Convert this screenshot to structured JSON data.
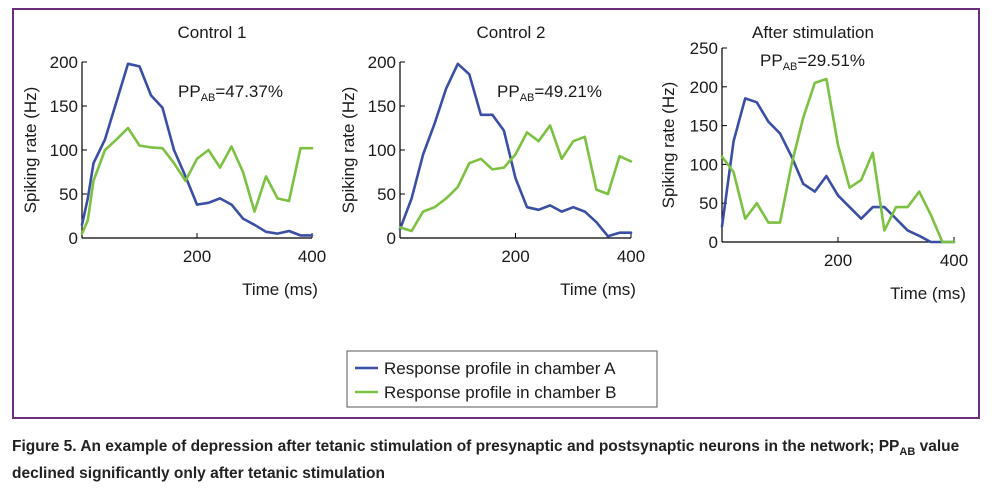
{
  "colors": {
    "series_a": "#3a4fa3",
    "series_b": "#7cc142",
    "frame": "#6b2f7e"
  },
  "chart_data": [
    {
      "type": "line",
      "title": "Control 1",
      "annotation": {
        "prefix": "PP",
        "sub": "AB",
        "suffix": "=47.37%"
      },
      "xlabel": "Time (ms)",
      "ylabel": "Spiking rate (Hz)",
      "xlim": [
        0,
        400
      ],
      "ylim": [
        0,
        200
      ],
      "xticks": [
        200,
        400
      ],
      "yticks": [
        0,
        50,
        100,
        150,
        200
      ],
      "series": [
        {
          "name": "Response profile in chamber A",
          "x": [
            0,
            10,
            20,
            40,
            60,
            80,
            100,
            120,
            140,
            160,
            180,
            200,
            220,
            240,
            260,
            280,
            300,
            320,
            340,
            360,
            380,
            400
          ],
          "y": [
            15,
            45,
            85,
            112,
            155,
            198,
            195,
            162,
            148,
            100,
            70,
            38,
            40,
            45,
            38,
            22,
            15,
            7,
            5,
            8,
            3,
            3
          ]
        },
        {
          "name": "Response profile in chamber B",
          "x": [
            0,
            10,
            20,
            40,
            60,
            80,
            100,
            120,
            140,
            160,
            180,
            200,
            220,
            240,
            260,
            280,
            300,
            320,
            340,
            360,
            380,
            400
          ],
          "y": [
            5,
            20,
            65,
            100,
            112,
            125,
            105,
            103,
            102,
            85,
            65,
            90,
            100,
            80,
            104,
            75,
            30,
            70,
            45,
            42,
            102,
            102
          ]
        }
      ]
    },
    {
      "type": "line",
      "title": "Control 2",
      "annotation": {
        "prefix": "PP",
        "sub": "AB",
        "suffix": "=49.21%"
      },
      "xlabel": "Time (ms)",
      "ylabel": "Spiking rate (Hz)",
      "xlim": [
        0,
        400
      ],
      "ylim": [
        0,
        200
      ],
      "xticks": [
        200,
        400
      ],
      "yticks": [
        0,
        50,
        100,
        150,
        200
      ],
      "series": [
        {
          "name": "Response profile in chamber A",
          "x": [
            0,
            20,
            40,
            60,
            80,
            100,
            120,
            140,
            160,
            180,
            200,
            220,
            240,
            260,
            280,
            300,
            320,
            340,
            360,
            380,
            400
          ],
          "y": [
            10,
            45,
            95,
            130,
            170,
            198,
            186,
            140,
            140,
            122,
            68,
            35,
            32,
            37,
            30,
            35,
            30,
            18,
            2,
            6,
            6
          ]
        },
        {
          "name": "Response profile in chamber B",
          "x": [
            0,
            20,
            40,
            60,
            80,
            100,
            120,
            140,
            160,
            180,
            200,
            220,
            240,
            260,
            280,
            300,
            320,
            340,
            360,
            380,
            400
          ],
          "y": [
            12,
            8,
            30,
            35,
            45,
            58,
            85,
            90,
            78,
            80,
            95,
            120,
            110,
            128,
            90,
            110,
            115,
            55,
            50,
            93,
            87
          ]
        }
      ]
    },
    {
      "type": "line",
      "title": "After stimulation",
      "annotation": {
        "prefix": "PP",
        "sub": "AB",
        "suffix": "=29.51%"
      },
      "xlabel": "Time (ms)",
      "ylabel": "Spiking rate (Hz)",
      "xlim": [
        0,
        400
      ],
      "ylim": [
        0,
        250
      ],
      "xticks": [
        200,
        400
      ],
      "yticks": [
        0,
        50,
        100,
        150,
        200,
        250
      ],
      "series": [
        {
          "name": "Response profile in chamber A",
          "x": [
            0,
            20,
            40,
            60,
            80,
            100,
            120,
            140,
            160,
            180,
            200,
            220,
            240,
            260,
            280,
            300,
            320,
            340,
            360,
            380,
            400
          ],
          "y": [
            20,
            130,
            185,
            180,
            155,
            140,
            110,
            75,
            65,
            85,
            60,
            45,
            30,
            45,
            45,
            30,
            15,
            8,
            0,
            0,
            0
          ]
        },
        {
          "name": "Response profile in chamber B",
          "x": [
            0,
            20,
            40,
            60,
            80,
            100,
            120,
            140,
            160,
            180,
            200,
            220,
            240,
            260,
            280,
            300,
            320,
            340,
            360,
            380,
            400
          ],
          "y": [
            110,
            90,
            30,
            50,
            25,
            25,
            100,
            160,
            205,
            210,
            125,
            70,
            80,
            115,
            15,
            45,
            45,
            65,
            35,
            0,
            0
          ]
        }
      ]
    }
  ],
  "legend": {
    "items": [
      {
        "label": "Response profile in chamber A",
        "color_key": "series_a"
      },
      {
        "label": "Response profile in chamber B",
        "color_key": "series_b"
      }
    ]
  },
  "caption": {
    "part1": "Figure 5. An example of depression after tetanic stimulation of presynaptic and postsynaptic neurons in the network; PP",
    "sub": "AB",
    "part2": " value declined significantly only after tetanic stimulation"
  }
}
